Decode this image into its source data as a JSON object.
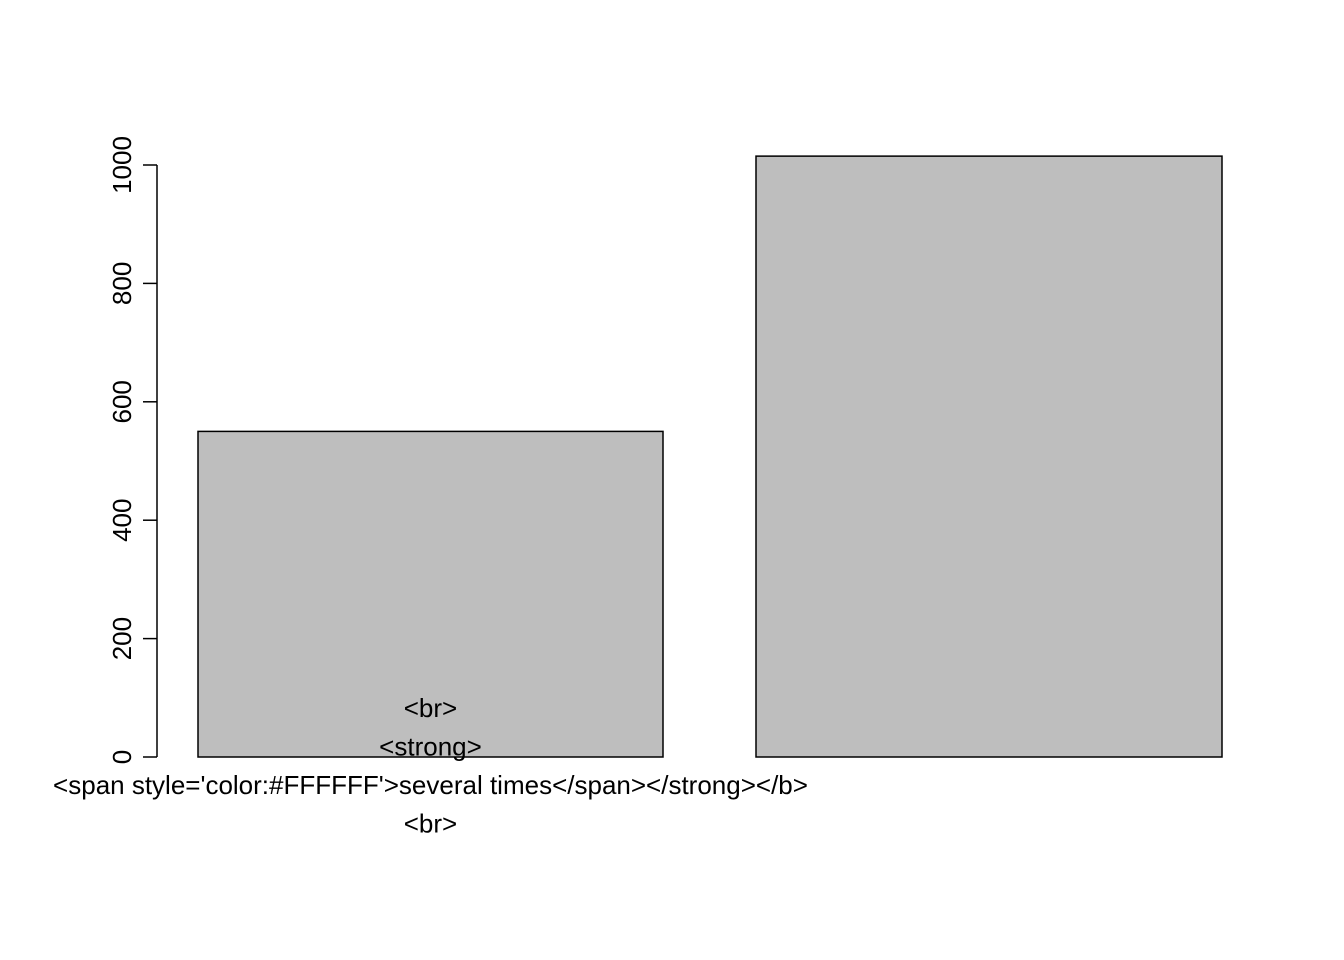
{
  "chart_data": {
    "type": "bar",
    "title": "",
    "xlabel": "",
    "ylabel": "",
    "ylim": [
      0,
      1000
    ],
    "y_ticks": [
      "0",
      "200",
      "400",
      "600",
      "800",
      "1000"
    ],
    "categories": [
      "<br>\n<strong>\n<span style='color:#FFFFFF'>several times</span></strong></b>\n<br>",
      ""
    ],
    "values": [
      550,
      1015
    ],
    "bar_fill": "#BEBEBE",
    "bar_stroke": "#000000",
    "grid": false,
    "legend": "none"
  }
}
